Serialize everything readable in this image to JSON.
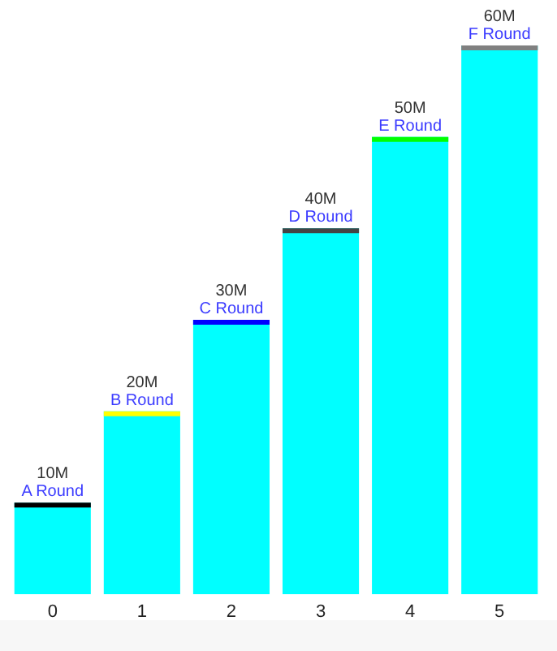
{
  "chart_data": {
    "type": "bar",
    "categories": [
      "0",
      "1",
      "2",
      "3",
      "4",
      "5"
    ],
    "series": [
      {
        "color": "#00ffff",
        "values": [
          10,
          20,
          30,
          40,
          50,
          60
        ],
        "value_labels": [
          "10M",
          "20M",
          "30M",
          "40M",
          "50M",
          "60M"
        ]
      }
    ],
    "annotations": [
      {
        "text": "A Round",
        "x": "0",
        "y": 10
      },
      {
        "text": "B Round",
        "x": "1",
        "y": 20
      },
      {
        "text": "C Round",
        "x": "2",
        "y": 30
      },
      {
        "text": "D Round",
        "x": "3",
        "y": 40
      },
      {
        "text": "E Round",
        "x": "4",
        "y": 50
      },
      {
        "text": "F Round",
        "x": "5",
        "y": 60
      }
    ],
    "grid": false
  }
}
